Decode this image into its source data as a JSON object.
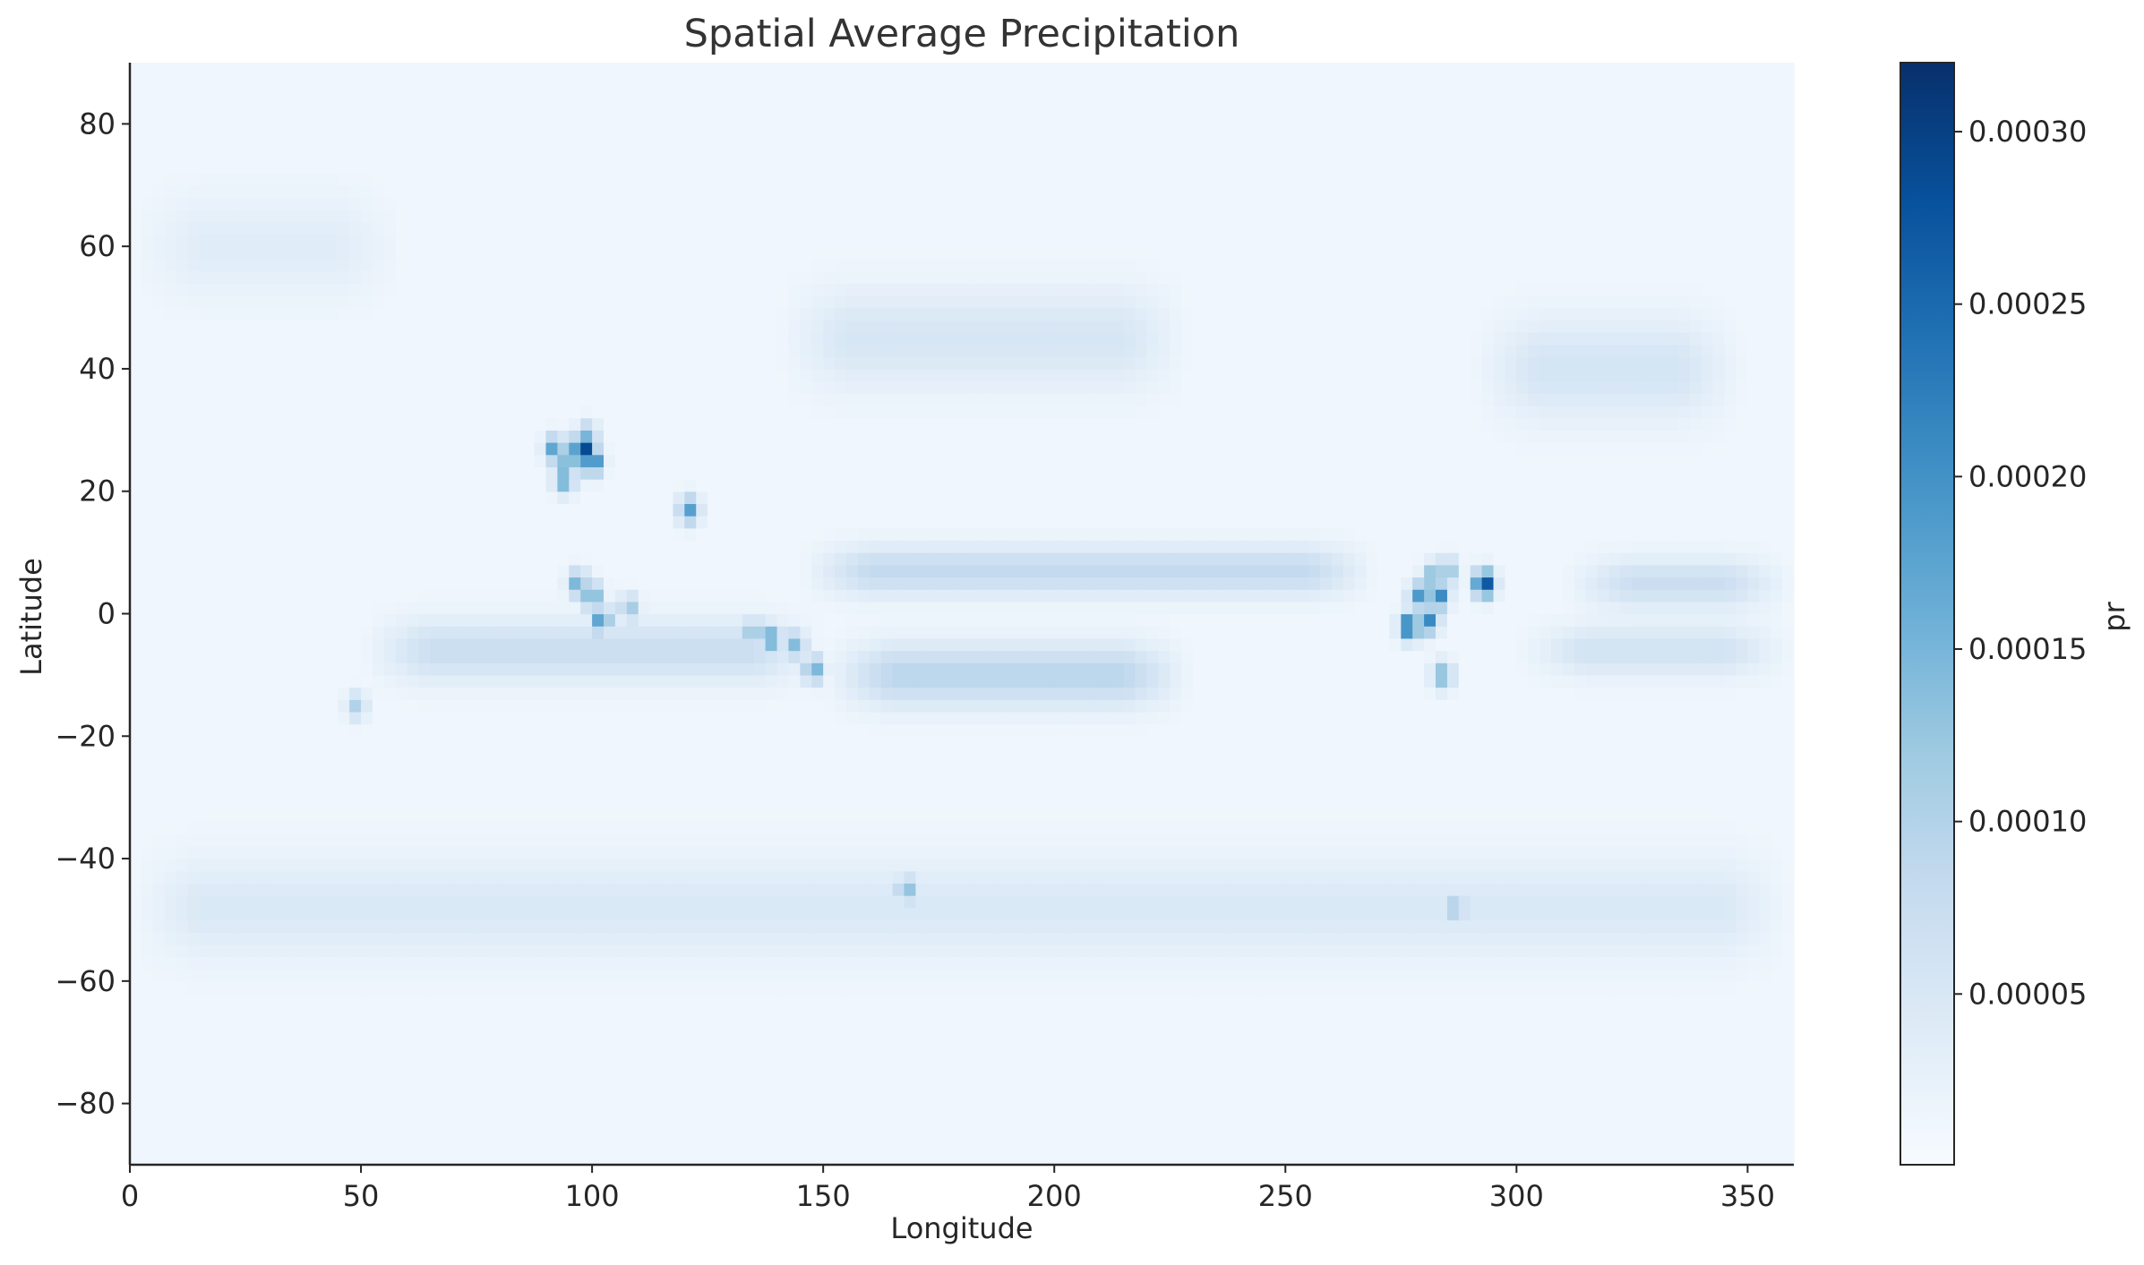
{
  "chart_data": {
    "type": "heatmap",
    "title": "Spatial Average Precipitation",
    "xlabel": "Longitude",
    "ylabel": "Latitude",
    "colorbar_label": "pr",
    "colormap": "Blues",
    "colormap_stops": [
      "#f7fbff",
      "#deebf7",
      "#c6dbef",
      "#9ecae1",
      "#6baed6",
      "#4292c6",
      "#2171b5",
      "#08519c",
      "#08306b"
    ],
    "xlim": [
      0,
      360
    ],
    "ylim": [
      -90,
      90
    ],
    "x_ticks": [
      0,
      50,
      100,
      150,
      200,
      250,
      300,
      350
    ],
    "x_tick_labels": [
      "0",
      "50",
      "100",
      "150",
      "200",
      "250",
      "300",
      "350"
    ],
    "y_ticks": [
      80,
      60,
      40,
      20,
      0,
      -20,
      -40,
      -60,
      -80
    ],
    "y_tick_labels": [
      "80",
      "60",
      "40",
      "20",
      "0",
      "−20",
      "−40",
      "−60",
      "−80"
    ],
    "color_range": [
      5e-07,
      0.00032
    ],
    "colorbar_ticks": [
      5e-05,
      0.0001,
      0.00015,
      0.0002,
      0.00025,
      0.0003
    ],
    "colorbar_tick_labels": [
      "0.00005",
      "0.00010",
      "0.00015",
      "0.00020",
      "0.00025",
      "0.00030"
    ],
    "grid": false,
    "features": {
      "background": 1.2e-05,
      "zonal_bands": [
        {
          "lat": 7,
          "lon_range": [
            145,
            270
          ],
          "width": 4,
          "value": 7e-05
        },
        {
          "lat": -10,
          "lon_range": [
            150,
            230
          ],
          "width": 5,
          "value": 8e-05
        },
        {
          "lat": -6,
          "lon_range": [
            50,
            150
          ],
          "width": 5,
          "value": 6e-05
        },
        {
          "lat": 5,
          "lon_range": [
            310,
            360
          ],
          "width": 4,
          "value": 6e-05
        },
        {
          "lat": -6,
          "lon_range": [
            300,
            360
          ],
          "width": 4,
          "value": 5e-05
        },
        {
          "lat": 45,
          "lon_range": [
            140,
            230
          ],
          "width": 8,
          "value": 4e-05
        },
        {
          "lat": 40,
          "lon_range": [
            290,
            350
          ],
          "width": 8,
          "value": 4.5e-05
        },
        {
          "lat": -48,
          "lon_range": [
            0,
            360
          ],
          "width": 8,
          "value": 3.5e-05
        },
        {
          "lat": 60,
          "lon_range": [
            0,
            60
          ],
          "width": 8,
          "value": 2.5e-05
        }
      ],
      "hotspots": [
        {
          "lon": 98,
          "lat": 27,
          "value": 0.00031
        },
        {
          "lon": 100,
          "lat": 25,
          "value": 0.00024
        },
        {
          "lon": 92,
          "lat": 27,
          "value": 0.00018
        },
        {
          "lon": 95,
          "lat": 25,
          "value": 0.00017
        },
        {
          "lon": 94,
          "lat": 22,
          "value": 0.00016
        },
        {
          "lon": 99,
          "lat": 29,
          "value": 0.00014
        },
        {
          "lon": 97,
          "lat": 5,
          "value": 0.00015
        },
        {
          "lon": 100,
          "lat": 3,
          "value": 0.00016
        },
        {
          "lon": 102,
          "lat": -1,
          "value": 0.00018
        },
        {
          "lon": 108,
          "lat": 1,
          "value": 0.00011
        },
        {
          "lon": 121,
          "lat": 17,
          "value": 0.00017
        },
        {
          "lon": 135,
          "lat": -3,
          "value": 0.00013
        },
        {
          "lon": 139,
          "lat": -4,
          "value": 0.00016
        },
        {
          "lon": 144,
          "lat": -5,
          "value": 0.00013
        },
        {
          "lon": 148,
          "lat": -9,
          "value": 0.00015
        },
        {
          "lon": 168,
          "lat": -45,
          "value": 0.00013
        },
        {
          "lon": 293,
          "lat": 5,
          "value": 0.00029
        },
        {
          "lon": 277,
          "lat": -2,
          "value": 0.00025
        },
        {
          "lon": 283,
          "lat": 3,
          "value": 0.00022
        },
        {
          "lon": 279,
          "lat": 3,
          "value": 0.00018
        },
        {
          "lon": 281,
          "lat": -1,
          "value": 0.0002
        },
        {
          "lon": 282,
          "lat": 6,
          "value": 0.00015
        },
        {
          "lon": 285,
          "lat": 7,
          "value": 0.00013
        },
        {
          "lon": 284,
          "lat": -10,
          "value": 0.00014
        },
        {
          "lon": 287,
          "lat": -48,
          "value": 0.00011
        },
        {
          "lon": 49,
          "lat": -15,
          "value": 9e-05
        }
      ]
    }
  }
}
